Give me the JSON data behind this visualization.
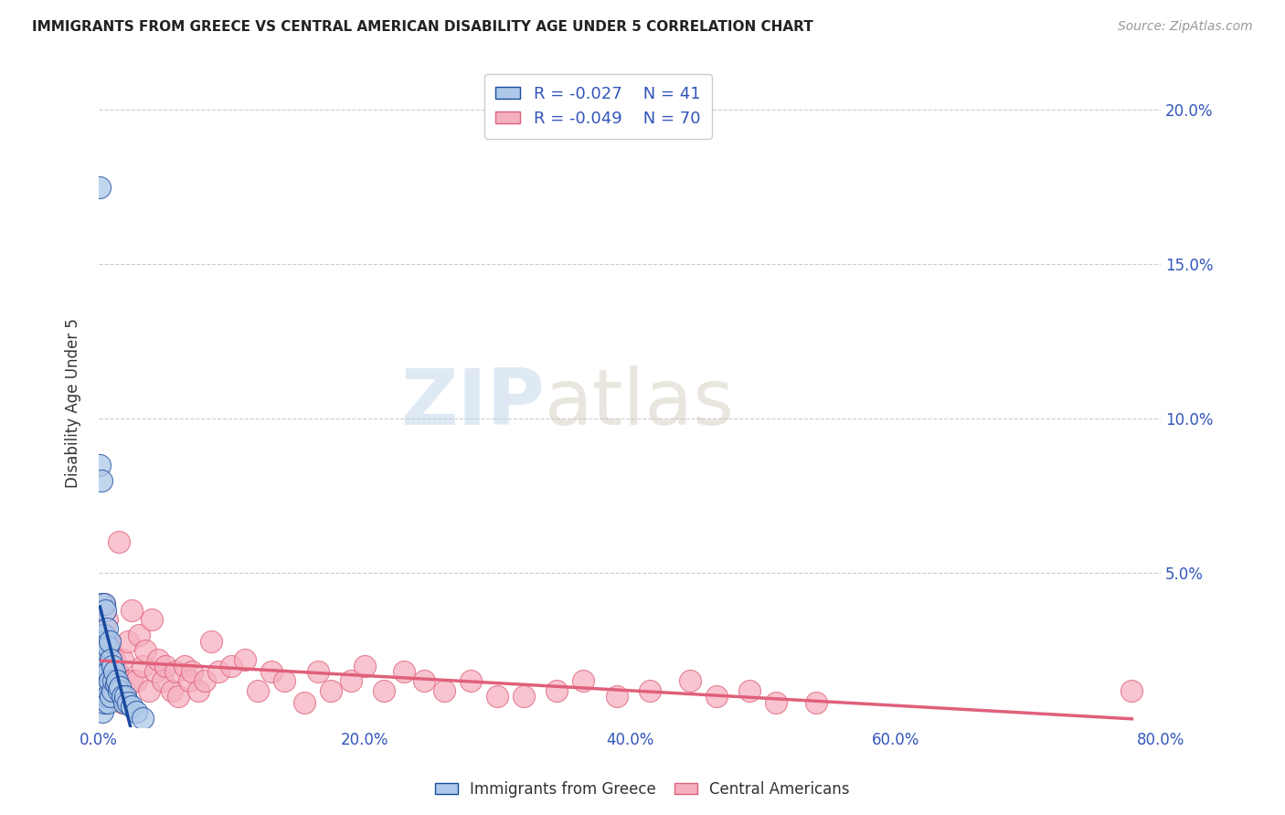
{
  "title": "IMMIGRANTS FROM GREECE VS CENTRAL AMERICAN DISABILITY AGE UNDER 5 CORRELATION CHART",
  "source": "Source: ZipAtlas.com",
  "ylabel": "Disability Age Under 5",
  "xlim": [
    0.0,
    0.8
  ],
  "ylim": [
    0.0,
    0.21
  ],
  "yticks": [
    0.0,
    0.05,
    0.1,
    0.15,
    0.2
  ],
  "ytick_labels": [
    "",
    "5.0%",
    "10.0%",
    "15.0%",
    "20.0%"
  ],
  "xticks": [
    0.0,
    0.2,
    0.4,
    0.6,
    0.8
  ],
  "xtick_labels": [
    "0.0%",
    "20.0%",
    "40.0%",
    "60.0%",
    "80.0%"
  ],
  "greece_R": -0.027,
  "greece_N": 41,
  "central_R": -0.049,
  "central_N": 70,
  "greece_color": "#adc8e8",
  "central_color": "#f5b0c0",
  "greece_line_color": "#1a4a9e",
  "central_line_color": "#e0607a",
  "trend_dash_color": "#88bce8",
  "background_color": "#ffffff",
  "grid_color": "#cccccc",
  "title_color": "#222222",
  "tick_color": "#3355bb",
  "legend_text_color": "#3355bb",
  "watermark_zip": "ZIP",
  "watermark_atlas": "atlas",
  "greece_x": [
    0.001,
    0.001,
    0.002,
    0.002,
    0.002,
    0.003,
    0.003,
    0.003,
    0.003,
    0.004,
    0.004,
    0.004,
    0.004,
    0.005,
    0.005,
    0.005,
    0.006,
    0.006,
    0.006,
    0.007,
    0.007,
    0.007,
    0.008,
    0.008,
    0.009,
    0.009,
    0.01,
    0.01,
    0.011,
    0.012,
    0.013,
    0.014,
    0.015,
    0.016,
    0.018,
    0.019,
    0.02,
    0.022,
    0.025,
    0.028,
    0.033
  ],
  "greece_y": [
    0.175,
    0.085,
    0.08,
    0.04,
    0.01,
    0.03,
    0.025,
    0.02,
    0.005,
    0.04,
    0.03,
    0.022,
    0.008,
    0.038,
    0.028,
    0.015,
    0.032,
    0.02,
    0.01,
    0.026,
    0.018,
    0.008,
    0.028,
    0.015,
    0.022,
    0.01,
    0.02,
    0.012,
    0.015,
    0.018,
    0.014,
    0.015,
    0.012,
    0.013,
    0.01,
    0.008,
    0.01,
    0.008,
    0.007,
    0.005,
    0.003
  ],
  "central_x": [
    0.002,
    0.003,
    0.004,
    0.005,
    0.005,
    0.006,
    0.007,
    0.008,
    0.009,
    0.01,
    0.01,
    0.011,
    0.012,
    0.013,
    0.014,
    0.015,
    0.016,
    0.018,
    0.018,
    0.02,
    0.022,
    0.025,
    0.025,
    0.028,
    0.03,
    0.033,
    0.035,
    0.038,
    0.04,
    0.043,
    0.045,
    0.048,
    0.05,
    0.055,
    0.058,
    0.06,
    0.065,
    0.068,
    0.07,
    0.075,
    0.08,
    0.085,
    0.09,
    0.1,
    0.11,
    0.12,
    0.13,
    0.14,
    0.155,
    0.165,
    0.175,
    0.19,
    0.2,
    0.215,
    0.23,
    0.245,
    0.26,
    0.28,
    0.3,
    0.32,
    0.345,
    0.365,
    0.39,
    0.415,
    0.445,
    0.465,
    0.49,
    0.51,
    0.54,
    0.778
  ],
  "central_y": [
    0.03,
    0.025,
    0.04,
    0.03,
    0.015,
    0.035,
    0.028,
    0.018,
    0.025,
    0.02,
    0.01,
    0.018,
    0.022,
    0.01,
    0.018,
    0.06,
    0.015,
    0.022,
    0.008,
    0.012,
    0.028,
    0.038,
    0.015,
    0.015,
    0.03,
    0.02,
    0.025,
    0.012,
    0.035,
    0.018,
    0.022,
    0.015,
    0.02,
    0.012,
    0.018,
    0.01,
    0.02,
    0.015,
    0.018,
    0.012,
    0.015,
    0.028,
    0.018,
    0.02,
    0.022,
    0.012,
    0.018,
    0.015,
    0.008,
    0.018,
    0.012,
    0.015,
    0.02,
    0.012,
    0.018,
    0.015,
    0.012,
    0.015,
    0.01,
    0.01,
    0.012,
    0.015,
    0.01,
    0.012,
    0.015,
    0.01,
    0.012,
    0.008,
    0.008,
    0.012
  ]
}
